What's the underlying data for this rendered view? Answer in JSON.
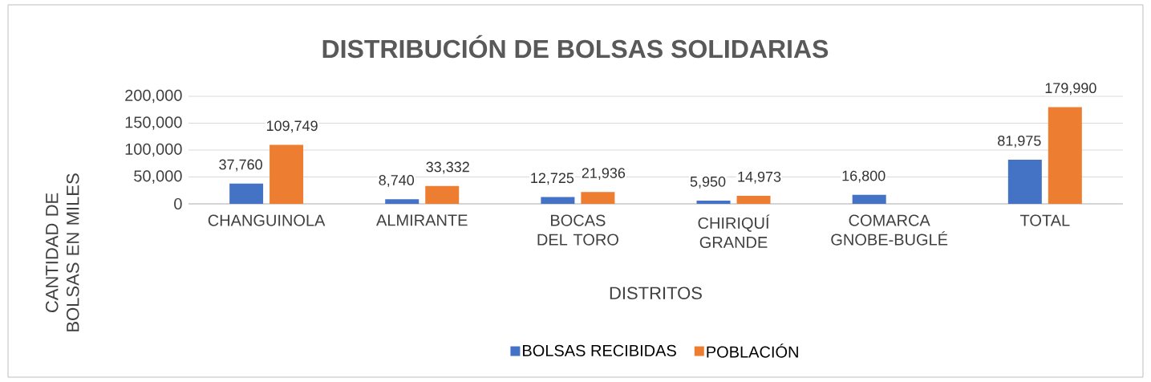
{
  "chart_data": {
    "type": "bar",
    "title": "DISTRIBUCIÓN DE BOLSAS SOLIDARIAS",
    "xlabel": "DISTRITOS",
    "ylabel": "CANTIDAD DE BOLSAS EN MILES",
    "categories": [
      "CHANGUINOLA",
      "ALMIRANTE",
      "BOCAS DEL TORO",
      "CHIRIQUÍ GRANDE",
      "COMARCA GNOBE-BUGLÉ",
      "TOTAL"
    ],
    "series": [
      {
        "name": "BOLSAS RECIBIDAS",
        "color": "#4472c4",
        "values": [
          37760,
          8740,
          12725,
          5950,
          16800,
          81975
        ],
        "value_labels": [
          "37,760",
          "8,740",
          "12,725",
          "5,950",
          "16,800",
          "81,975"
        ]
      },
      {
        "name": "POBLACIÓN",
        "color": "#ed7d31",
        "values": [
          109749,
          33332,
          21936,
          14973,
          null,
          179990
        ],
        "value_labels": [
          "109,749",
          "33,332",
          "21,936",
          "14,973",
          null,
          "179,990"
        ]
      }
    ],
    "ylim": [
      0,
      200000
    ],
    "yticks": [
      0,
      {
        "value": 50000,
        "label": "50,000"
      },
      {
        "value": 100000,
        "label": "100,000"
      },
      {
        "value": 150000,
        "label": "150,000"
      },
      {
        "value": 200000,
        "label": "200,000"
      }
    ],
    "grid": "y",
    "legend": "bottom"
  }
}
